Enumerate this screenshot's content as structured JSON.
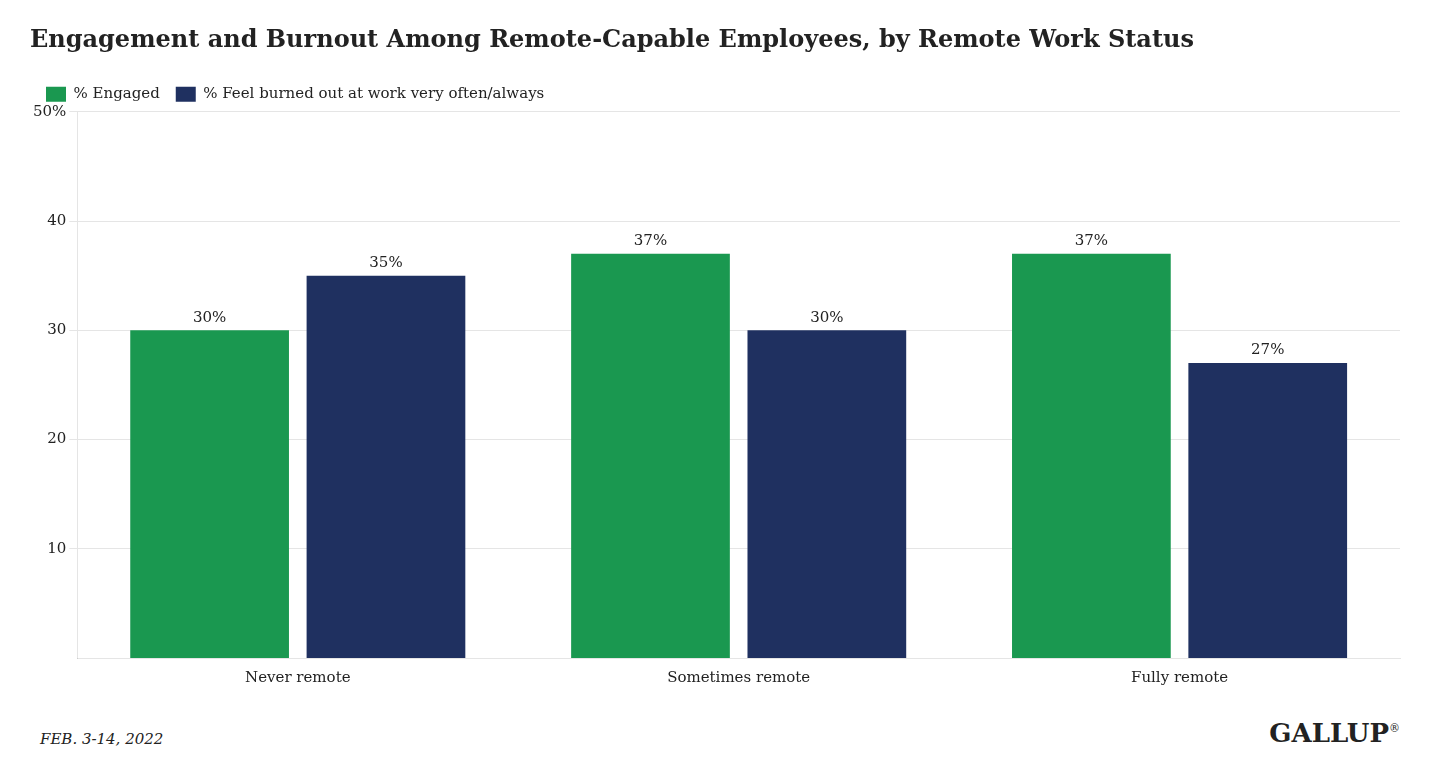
{
  "chart_data": {
    "type": "bar",
    "title": "Engagement and Burnout Among Remote-Capable Employees, by Remote Work Status",
    "categories": [
      "Never remote",
      "Sometimes remote",
      "Fully remote"
    ],
    "series": [
      {
        "name": "% Engaged",
        "color": "#1a9850",
        "values": [
          30,
          37,
          37
        ],
        "value_labels": [
          "30%",
          "37%",
          "37%"
        ]
      },
      {
        "name": "% Feel burned out at work very often/always",
        "color": "#1f3060",
        "values": [
          35,
          30,
          27
        ],
        "value_labels": [
          "35%",
          "30%",
          "27%"
        ]
      }
    ],
    "ylim": [
      0,
      50
    ],
    "yticks": [
      10,
      20,
      30,
      40,
      {
        "value": 50,
        "label": "50%"
      }
    ],
    "grid": true,
    "legend": "upper left",
    "data_labels": true,
    "annotations": [
      "FEB. 3-14, 2022",
      "GALLUP",
      "®"
    ]
  }
}
